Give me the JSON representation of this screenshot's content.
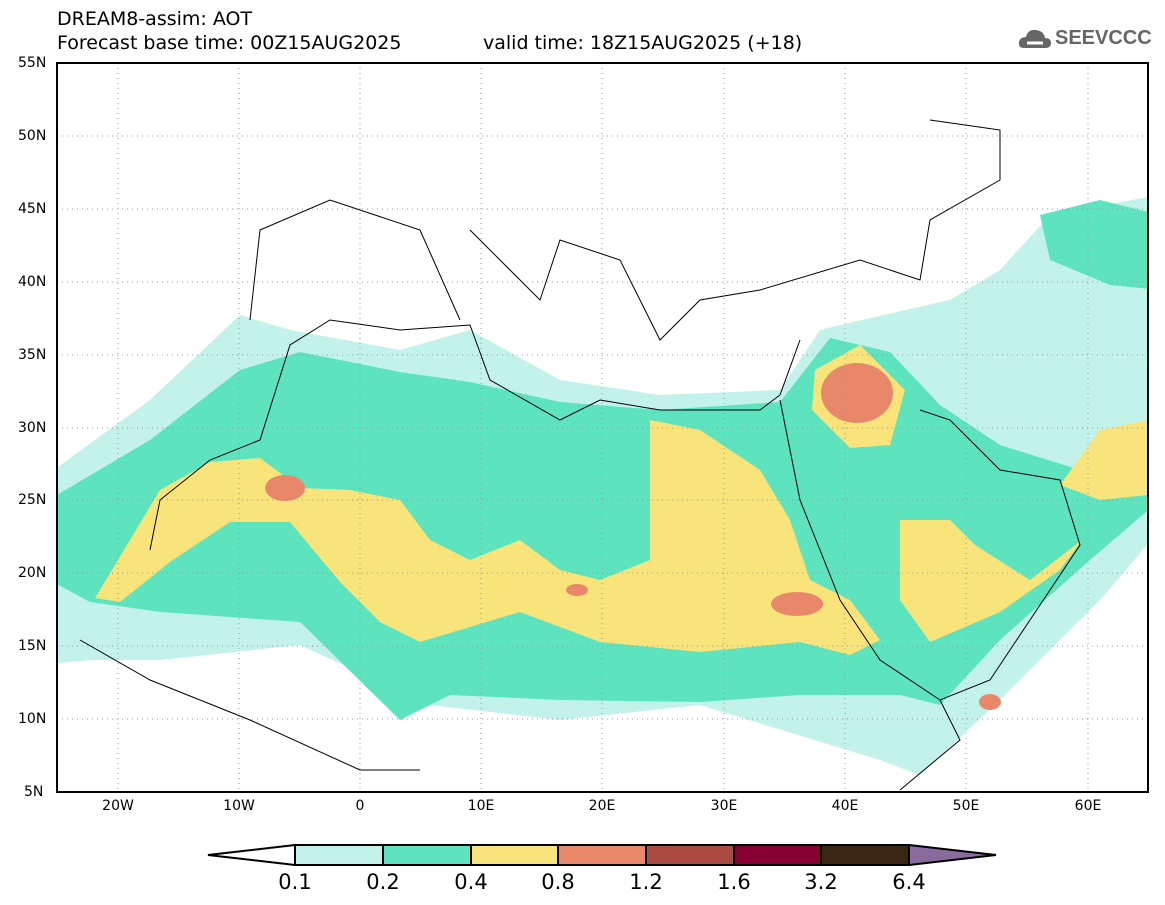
{
  "header": {
    "title": "DREAM8-assim: AOT",
    "base_time": "Forecast base time: 00Z15AUG2025",
    "valid_time": "valid time: 18Z15AUG2025 (+18)"
  },
  "logo": {
    "text": "SEEVCCC",
    "icon": "cloud-icon"
  },
  "axes": {
    "lat_labels": [
      "55N",
      "50N",
      "45N",
      "40N",
      "35N",
      "30N",
      "25N",
      "20N",
      "15N",
      "10N",
      "5N"
    ],
    "lon_labels": [
      "20W",
      "10W",
      "0",
      "10E",
      "20E",
      "30E",
      "40E",
      "50E",
      "60E"
    ],
    "lat_range": [
      5,
      55
    ],
    "lon_range": [
      -25,
      65
    ]
  },
  "colorbar": {
    "labels": [
      "0.1",
      "0.2",
      "0.4",
      "0.8",
      "1.2",
      "1.6",
      "3.2",
      "6.4"
    ],
    "colors": [
      "#ffffff",
      "#c3f2ea",
      "#5ee3bf",
      "#f8e47a",
      "#e9876a",
      "#ab4a40",
      "#860030",
      "#3a2413",
      "#8b6aa0"
    ]
  }
}
